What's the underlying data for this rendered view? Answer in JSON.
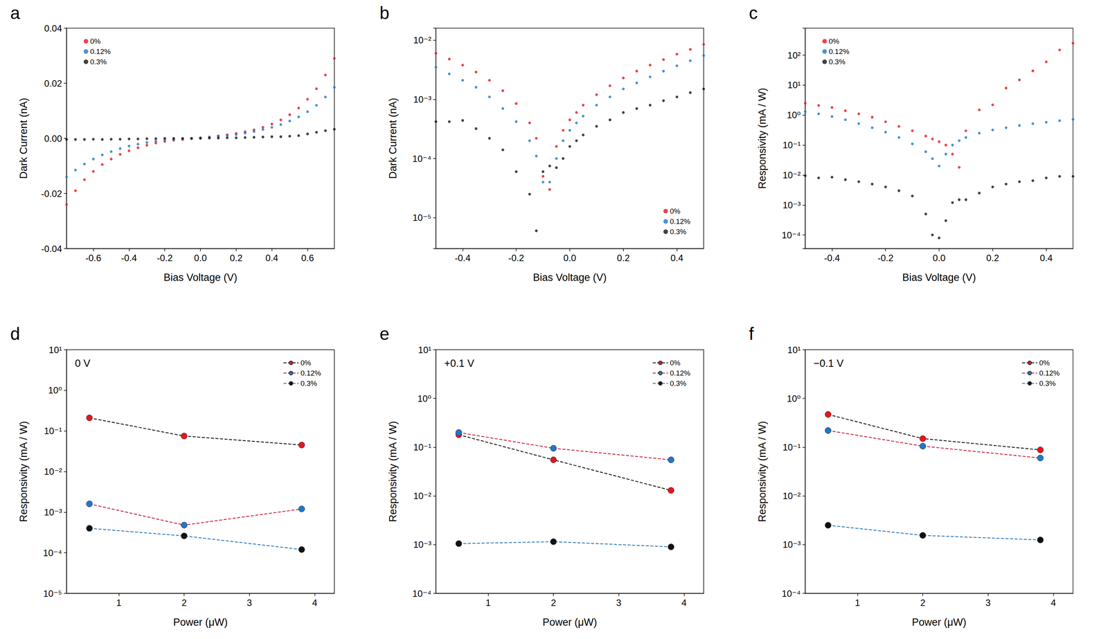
{
  "chart_data": [
    {
      "type": "scatter",
      "title": "a",
      "x_label": "Bias Voltage (V)",
      "y_label": "Dark Current (nA)",
      "x": [
        -0.75,
        -0.7,
        -0.65,
        -0.6,
        -0.55,
        -0.5,
        -0.45,
        -0.4,
        -0.35,
        -0.3,
        -0.25,
        -0.2,
        -0.15,
        -0.1,
        -0.05,
        0,
        0.05,
        0.1,
        0.15,
        0.2,
        0.25,
        0.3,
        0.35,
        0.4,
        0.45,
        0.5,
        0.55,
        0.6,
        0.65,
        0.7,
        0.75
      ],
      "series": [
        {
          "name": "0%",
          "color": "#e8141c",
          "values": [
            -0.024,
            -0.019,
            -0.015,
            -0.012,
            -0.0095,
            -0.0075,
            -0.0058,
            -0.0045,
            -0.0034,
            -0.0025,
            -0.0017,
            -0.0011,
            -0.0007,
            -0.0004,
            -0.0001,
            0.0002,
            0.0005,
            0.0009,
            0.0013,
            0.0018,
            0.0024,
            0.0031,
            0.004,
            0.0052,
            0.0067,
            0.0086,
            0.011,
            0.0142,
            0.018,
            0.023,
            0.029
          ]
        },
        {
          "name": "0.12%",
          "color": "#1f77c8",
          "values": [
            -0.014,
            -0.0115,
            -0.0093,
            -0.0075,
            -0.006,
            -0.0048,
            -0.0037,
            -0.0028,
            -0.0021,
            -0.0015,
            -0.001,
            -0.0006,
            -0.0004,
            -0.0002,
            0,
            0.0002,
            0.0004,
            0.0007,
            0.001,
            0.0014,
            0.0019,
            0.0025,
            0.0032,
            0.004,
            0.005,
            0.0063,
            0.0078,
            0.0097,
            0.012,
            0.015,
            0.0185
          ]
        },
        {
          "name": "0.3%",
          "color": "#111111",
          "values": [
            -0.0004,
            -0.0004,
            -0.0004,
            -0.0003,
            -0.0004,
            -0.0003,
            -0.0003,
            -0.0002,
            -0.0002,
            -0.0001,
            -0.0001,
            0,
            0,
            0,
            0,
            0,
            0.0001,
            0.0001,
            0.0002,
            0.0002,
            0.0003,
            0.0004,
            0.0005,
            0.0006,
            0.0006,
            0.0008,
            0.001,
            0.0016,
            0.0022,
            0.0028,
            0.0033
          ]
        }
      ],
      "xlim": [
        -0.75,
        0.75
      ],
      "xticks": [
        -0.6,
        -0.4,
        -0.2,
        {
          "value": 0,
          "label": "0.0"
        },
        0.2,
        0.4,
        0.6
      ],
      "ylim": [
        -0.04,
        0.04
      ],
      "yticks": [
        -0.04,
        -0.02,
        {
          "value": 0,
          "label": "0.00"
        },
        0.02,
        0.04
      ],
      "marker": "circle",
      "legend": "upper left",
      "grid": false
    },
    {
      "type": "scatter",
      "title": "b",
      "x_label": "Bias Voltage (V)",
      "y_label": "Dark Current (nA)",
      "x": [
        -0.5,
        -0.45,
        -0.4,
        -0.35,
        -0.3,
        -0.25,
        -0.2,
        -0.15,
        -0.125,
        -0.1,
        -0.075,
        -0.05,
        -0.025,
        0,
        0.025,
        0.05,
        0.1,
        0.15,
        0.2,
        0.25,
        0.3,
        0.35,
        0.4,
        0.45,
        0.5
      ],
      "series": [
        {
          "name": "0%",
          "color": "#e8141c",
          "values": [
            0.006,
            0.0048,
            0.0038,
            0.0029,
            0.0021,
            0.0014,
            0.00085,
            0.0004,
            0.00022,
            5e-05,
            3e-05,
            0.00016,
            0.0003,
            0.00045,
            0.0006,
            0.0008,
            0.0012,
            0.0017,
            0.0023,
            0.003,
            0.0038,
            0.0047,
            0.0058,
            0.007,
            0.0085
          ]
        },
        {
          "name": "0.12%",
          "color": "#1f77c8",
          "values": [
            0.0035,
            0.0027,
            0.0021,
            0.0016,
            0.0011,
            0.0007,
            0.00042,
            0.0002,
            0.00011,
            4e-05,
            4e-05,
            0.0001,
            0.0002,
            0.0003,
            0.0004,
            0.00052,
            0.0008,
            0.0011,
            0.0015,
            0.0019,
            0.0024,
            0.003,
            0.0037,
            0.0045,
            0.0055
          ]
        },
        {
          "name": "0.3%",
          "color": "#111111",
          "values": [
            0.00042,
            0.00042,
            0.00044,
            0.00032,
            0.00022,
            0.00014,
            6e-05,
            2.5e-05,
            6e-06,
            6e-05,
            7.5e-05,
            7e-05,
            0.0001,
            0.00016,
            0.0002,
            0.00025,
            0.00035,
            0.00045,
            0.0006,
            0.0007,
            0.0008,
            0.00095,
            0.0011,
            0.0013,
            0.0015
          ]
        }
      ],
      "xlim": [
        -0.5,
        0.5
      ],
      "xticks": [
        -0.4,
        -0.2,
        {
          "value": 0,
          "label": "0.0"
        },
        0.2,
        0.4
      ],
      "ylim": [
        3e-06,
        0.016
      ],
      "yticks": [
        {
          "value": 1e-05,
          "label": "10⁻⁵"
        },
        {
          "value": 0.0001,
          "label": "10⁻⁴"
        },
        {
          "value": 0.001,
          "label": "10⁻³"
        },
        {
          "value": 0.01,
          "label": "10⁻²"
        }
      ],
      "log": "y",
      "marker": "circle",
      "legend": "lower right",
      "grid": false
    },
    {
      "type": "scatter",
      "title": "c",
      "x_label": "Bias Voltage (V)",
      "y_label": "Responsivity (mA / W)",
      "x": [
        -0.5,
        -0.45,
        -0.4,
        -0.35,
        -0.3,
        -0.25,
        -0.2,
        -0.15,
        -0.1,
        -0.05,
        -0.025,
        0,
        0.025,
        0.05,
        0.075,
        0.1,
        0.15,
        0.2,
        0.25,
        0.3,
        0.35,
        0.4,
        0.45,
        0.5
      ],
      "series": [
        {
          "name": "0%",
          "color": "#e8141c",
          "values": [
            2.5,
            2.1,
            1.8,
            1.4,
            1.1,
            0.85,
            0.6,
            0.42,
            0.3,
            0.2,
            0.16,
            0.13,
            0.1,
            0.05,
            0.018,
            0.3,
            1.5,
            2.2,
            8,
            15,
            30,
            60,
            150,
            250
          ]
        },
        {
          "name": "0.12%",
          "color": "#1f77c8",
          "values": [
            1.3,
            1.1,
            0.9,
            0.7,
            0.52,
            0.38,
            0.27,
            0.18,
            0.11,
            0.06,
            0.035,
            0.02,
            0.05,
            0.1,
            0.14,
            0.18,
            0.25,
            0.32,
            0.38,
            0.45,
            0.52,
            0.58,
            0.65,
            0.72
          ]
        },
        {
          "name": "0.3%",
          "color": "#111111",
          "values": [
            0.0095,
            0.008,
            0.0085,
            0.007,
            0.006,
            0.005,
            0.004,
            0.003,
            0.002,
            0.0005,
            0.0001,
            8e-05,
            0.0003,
            0.0012,
            0.0015,
            0.0015,
            0.0025,
            0.004,
            0.005,
            0.006,
            0.0065,
            0.008,
            0.009,
            0.009
          ]
        }
      ],
      "xlim": [
        -0.5,
        0.5
      ],
      "xticks": [
        -0.4,
        -0.2,
        {
          "value": 0,
          "label": "0.0"
        },
        0.2,
        0.4
      ],
      "ylim": [
        3.5e-05,
        800
      ],
      "yticks": [
        {
          "value": 0.0001,
          "label": "10⁻⁴"
        },
        {
          "value": 0.001,
          "label": "10⁻³"
        },
        {
          "value": 0.01,
          "label": "10⁻²"
        },
        {
          "value": 0.1,
          "label": "10⁻¹"
        },
        {
          "value": 1,
          "label": "10⁰"
        },
        {
          "value": 10,
          "label": "10¹"
        },
        {
          "value": 100,
          "label": "10²"
        }
      ],
      "log": "y",
      "marker": "circle",
      "legend": "upper left",
      "grid": false
    },
    {
      "type": "line",
      "title": "d",
      "annotation": "0 V",
      "x_label": "Power (μW)",
      "y_label": "Responsivity (mA / W)",
      "x": [
        0.55,
        2,
        3.8
      ],
      "series": [
        {
          "name": "0%",
          "color": "#e8141c",
          "values": [
            0.21,
            0.075,
            0.045
          ]
        },
        {
          "name": "0.12%",
          "color": "#1f77c8",
          "values": [
            0.0016,
            0.00048,
            0.0012
          ]
        },
        {
          "name": "0.3%",
          "color": "#111111",
          "values": [
            0.0004,
            0.00026,
            0.00012
          ]
        }
      ],
      "xlim": [
        0.2,
        4.3
      ],
      "xticks": [
        1,
        2,
        3,
        4
      ],
      "ylim": [
        1e-05,
        10
      ],
      "yticks": [
        {
          "value": 1e-05,
          "label": "10⁻⁵"
        },
        {
          "value": 0.0001,
          "label": "10⁻⁴"
        },
        {
          "value": 0.001,
          "label": "10⁻³"
        },
        {
          "value": 0.01,
          "label": "10⁻²"
        },
        {
          "value": 0.1,
          "label": "10⁻¹"
        },
        {
          "value": 1,
          "label": "10⁰"
        },
        {
          "value": 10,
          "label": "10¹"
        }
      ],
      "log": "y",
      "marker": "circle",
      "line_style": "dashed",
      "legend": "upper right",
      "grid": false
    },
    {
      "type": "line",
      "title": "e",
      "annotation": "+0.1 V",
      "x_label": "Power (μW)",
      "y_label": "Responsivity (mA / W)",
      "x": [
        0.55,
        2,
        3.8
      ],
      "series": [
        {
          "name": "0%",
          "color": "#e8141c",
          "values": [
            0.18,
            0.055,
            0.013
          ]
        },
        {
          "name": "0.12%",
          "color": "#1f77c8",
          "values": [
            0.2,
            0.095,
            0.055
          ]
        },
        {
          "name": "0.3%",
          "color": "#111111",
          "values": [
            0.00105,
            0.00115,
            0.0009
          ]
        }
      ],
      "xlim": [
        0.2,
        4.3
      ],
      "xticks": [
        1,
        2,
        3,
        4
      ],
      "ylim": [
        0.0001,
        10
      ],
      "yticks": [
        {
          "value": 0.0001,
          "label": "10⁻⁴"
        },
        {
          "value": 0.001,
          "label": "10⁻³"
        },
        {
          "value": 0.01,
          "label": "10⁻²"
        },
        {
          "value": 0.1,
          "label": "10⁻¹"
        },
        {
          "value": 1,
          "label": "10⁰"
        },
        {
          "value": 10,
          "label": "10¹"
        }
      ],
      "log": "y",
      "marker": "circle",
      "line_style": "dashed",
      "legend": "upper right",
      "grid": false
    },
    {
      "type": "line",
      "title": "f",
      "annotation": "−0.1 V",
      "x_label": "Power (μW)",
      "y_label": "Responsivity (mA / W)",
      "x": [
        0.55,
        2,
        3.8
      ],
      "series": [
        {
          "name": "0%",
          "color": "#e8141c",
          "values": [
            0.47,
            0.15,
            0.088
          ]
        },
        {
          "name": "0.12%",
          "color": "#1f77c8",
          "values": [
            0.22,
            0.105,
            0.06
          ]
        },
        {
          "name": "0.3%",
          "color": "#111111",
          "values": [
            0.0025,
            0.00155,
            0.00125
          ]
        }
      ],
      "xlim": [
        0.2,
        4.3
      ],
      "xticks": [
        1,
        2,
        3,
        4
      ],
      "ylim": [
        0.0001,
        10
      ],
      "yticks": [
        {
          "value": 0.0001,
          "label": "10⁻⁴"
        },
        {
          "value": 0.001,
          "label": "10⁻³"
        },
        {
          "value": 0.01,
          "label": "10⁻²"
        },
        {
          "value": 0.1,
          "label": "10⁻¹"
        },
        {
          "value": 1,
          "label": "10⁰"
        },
        {
          "value": 10,
          "label": "10¹"
        }
      ],
      "log": "y",
      "marker": "circle",
      "line_style": "dashed",
      "legend": "upper right",
      "grid": false
    }
  ]
}
